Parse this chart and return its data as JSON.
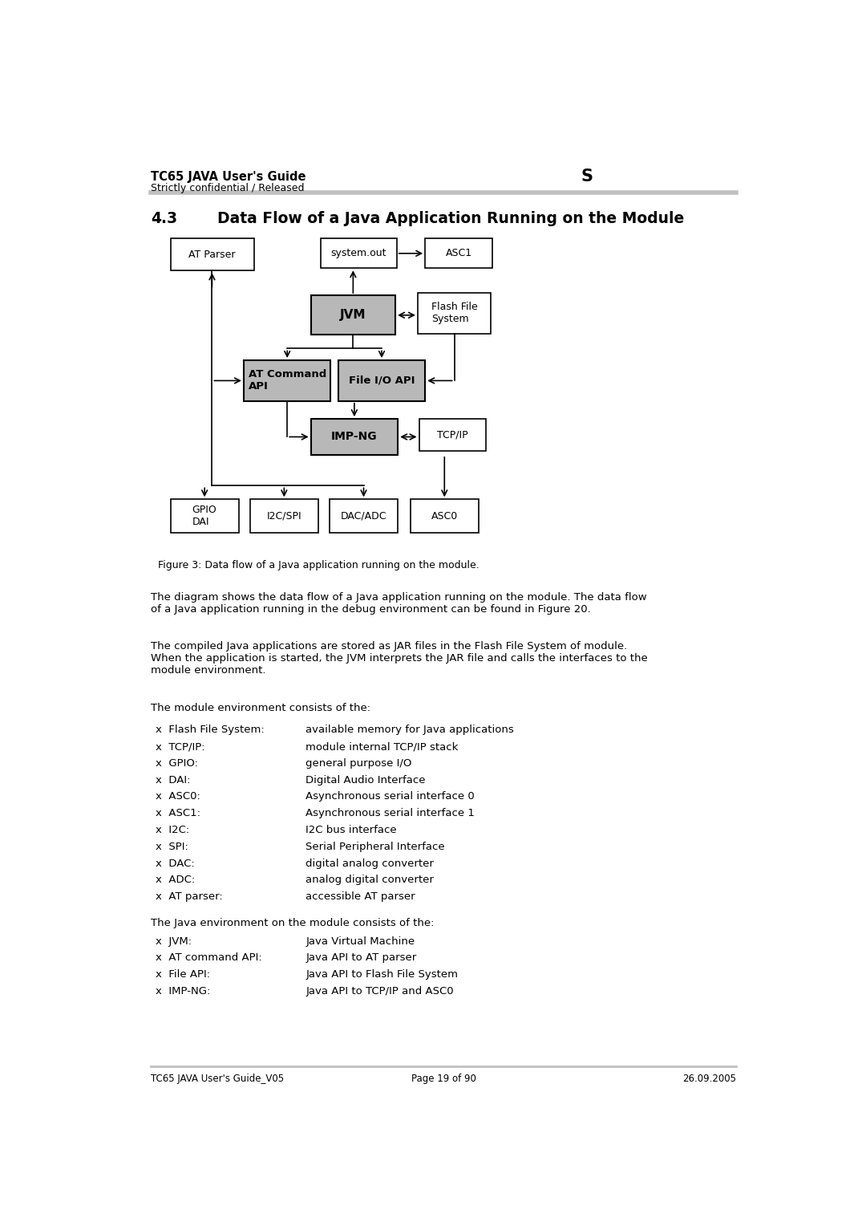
{
  "page_title": "TC65 JAVA User's Guide",
  "page_subtitle": "Strictly confidential / Released",
  "page_marker": "S",
  "section_title_num": "4.3",
  "section_title_text": "Data Flow of a Java Application Running on the Module",
  "figure_caption": "Figure 3: Data flow of a Java application running on the module.",
  "para1": "The diagram shows the data flow of a Java application running on the module. The data flow\nof a Java application running in the debug environment can be found in Figure 20.",
  "para2": "The compiled Java applications are stored as JAR files in the Flash File System of module.\nWhen the application is started, the JVM interprets the JAR file and calls the interfaces to the\nmodule environment.",
  "para3": "The module environment consists of the:",
  "module_env_items": [
    [
      "Flash File System:",
      "available memory for Java applications"
    ],
    [
      "TCP/IP:",
      "module internal TCP/IP stack"
    ],
    [
      "GPIO:",
      "general purpose I/O"
    ],
    [
      "DAI:",
      "Digital Audio Interface"
    ],
    [
      "ASC0:",
      "Asynchronous serial interface 0"
    ],
    [
      "ASC1:",
      "Asynchronous serial interface 1"
    ],
    [
      "I2C:",
      "I2C bus interface"
    ],
    [
      "SPI:",
      "Serial Peripheral Interface"
    ],
    [
      "DAC:",
      "digital analog converter"
    ],
    [
      "ADC:",
      "analog digital converter"
    ],
    [
      "AT parser:",
      "accessible AT parser"
    ]
  ],
  "para4": "The Java environment on the module consists of the:",
  "java_env_items": [
    [
      "JVM:",
      "Java Virtual Machine"
    ],
    [
      "AT command API:",
      "Java API to AT parser"
    ],
    [
      "File API:",
      "Java API to Flash File System"
    ],
    [
      "IMP-NG:",
      "Java API to TCP/IP and ASC0"
    ]
  ],
  "footer_left": "TC65 JAVA User's Guide_V05",
  "footer_center": "Page 19 of 90",
  "footer_right": "26.09.2005",
  "bg_color": "#ffffff",
  "box_gray": "#b8b8b8",
  "line_color": "#000000",
  "header_line_color": "#c0c0c0"
}
